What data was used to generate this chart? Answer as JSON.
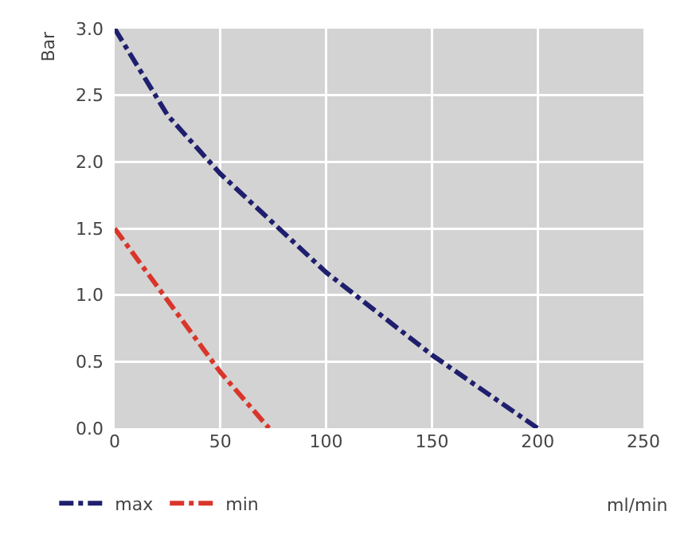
{
  "chart_data": {
    "type": "line",
    "xlabel": "ml/min",
    "ylabel": "Bar",
    "xlim": [
      0,
      250
    ],
    "xticks": [
      0,
      50,
      100,
      150,
      200,
      250
    ],
    "ylim": [
      0,
      3
    ],
    "yticks": [
      {
        "value": 0,
        "label": "0.0"
      },
      {
        "value": 0.5,
        "label": "0.5"
      },
      {
        "value": 1,
        "label": "1.0"
      },
      {
        "value": 1.5,
        "label": "1.5"
      },
      {
        "value": 2,
        "label": "2.0"
      },
      {
        "value": 2.5,
        "label": "2.5"
      },
      {
        "value": 3,
        "label": "3.0"
      }
    ],
    "grid": true,
    "legend": "bottom left",
    "line_style": "dashdot",
    "marker": "none",
    "series": [
      {
        "name": "max",
        "color": "#1f1f6e",
        "x": [
          0,
          25,
          50,
          100,
          150,
          200
        ],
        "values": [
          3,
          2.35,
          1.91,
          1.17,
          0.55,
          0
        ]
      },
      {
        "name": "min",
        "color": "#d9362b",
        "x": [
          0,
          50,
          73
        ],
        "values": [
          1.5,
          0.42,
          0
        ]
      }
    ]
  }
}
